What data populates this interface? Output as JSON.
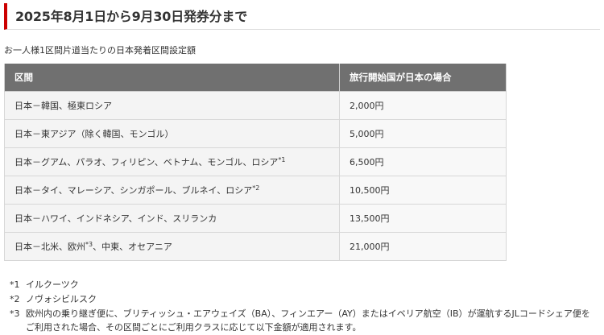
{
  "header": {
    "title": "2025年8月1日から9月30日発券分まで"
  },
  "subtitle": "お一人様1区間片道当たりの日本発着区間設定額",
  "table": {
    "columns": [
      "区間",
      "旅行開始国が日本の場合"
    ],
    "rows": [
      {
        "route": "日本－韓国、極東ロシア",
        "sup": "",
        "route_tail": "",
        "fare": "2,000円"
      },
      {
        "route": "日本－東アジア（除く韓国、モンゴル）",
        "sup": "",
        "route_tail": "",
        "fare": "5,000円"
      },
      {
        "route": "日本－グアム、パラオ、フィリピン、ベトナム、モンゴル、ロシア",
        "sup": "*1",
        "route_tail": "",
        "fare": "6,500円"
      },
      {
        "route": "日本－タイ、マレーシア、シンガポール、ブルネイ、ロシア",
        "sup": "*2",
        "route_tail": "",
        "fare": "10,500円"
      },
      {
        "route": "日本－ハワイ、インドネシア、インド、スリランカ",
        "sup": "",
        "route_tail": "",
        "fare": "13,500円"
      },
      {
        "route": "日本－北米、欧州",
        "sup": "*3",
        "route_tail": "、中東、オセアニア",
        "fare": "21,000円"
      }
    ]
  },
  "notes": [
    {
      "mark": "*1",
      "text": "イルクーツク"
    },
    {
      "mark": "*2",
      "text": "ノヴォシビルスク"
    },
    {
      "mark": "*3",
      "text": "欧州内の乗り継ぎ便に、ブリティッシュ・エアウェイズ（BA）、フィンエアー（AY）またはイベリア航空（IB）が運航するJLコードシェア便を",
      "cont": "ご利用された場合、その区間ごとにご利用クラスに応じて以下金額が適用されます。"
    }
  ]
}
